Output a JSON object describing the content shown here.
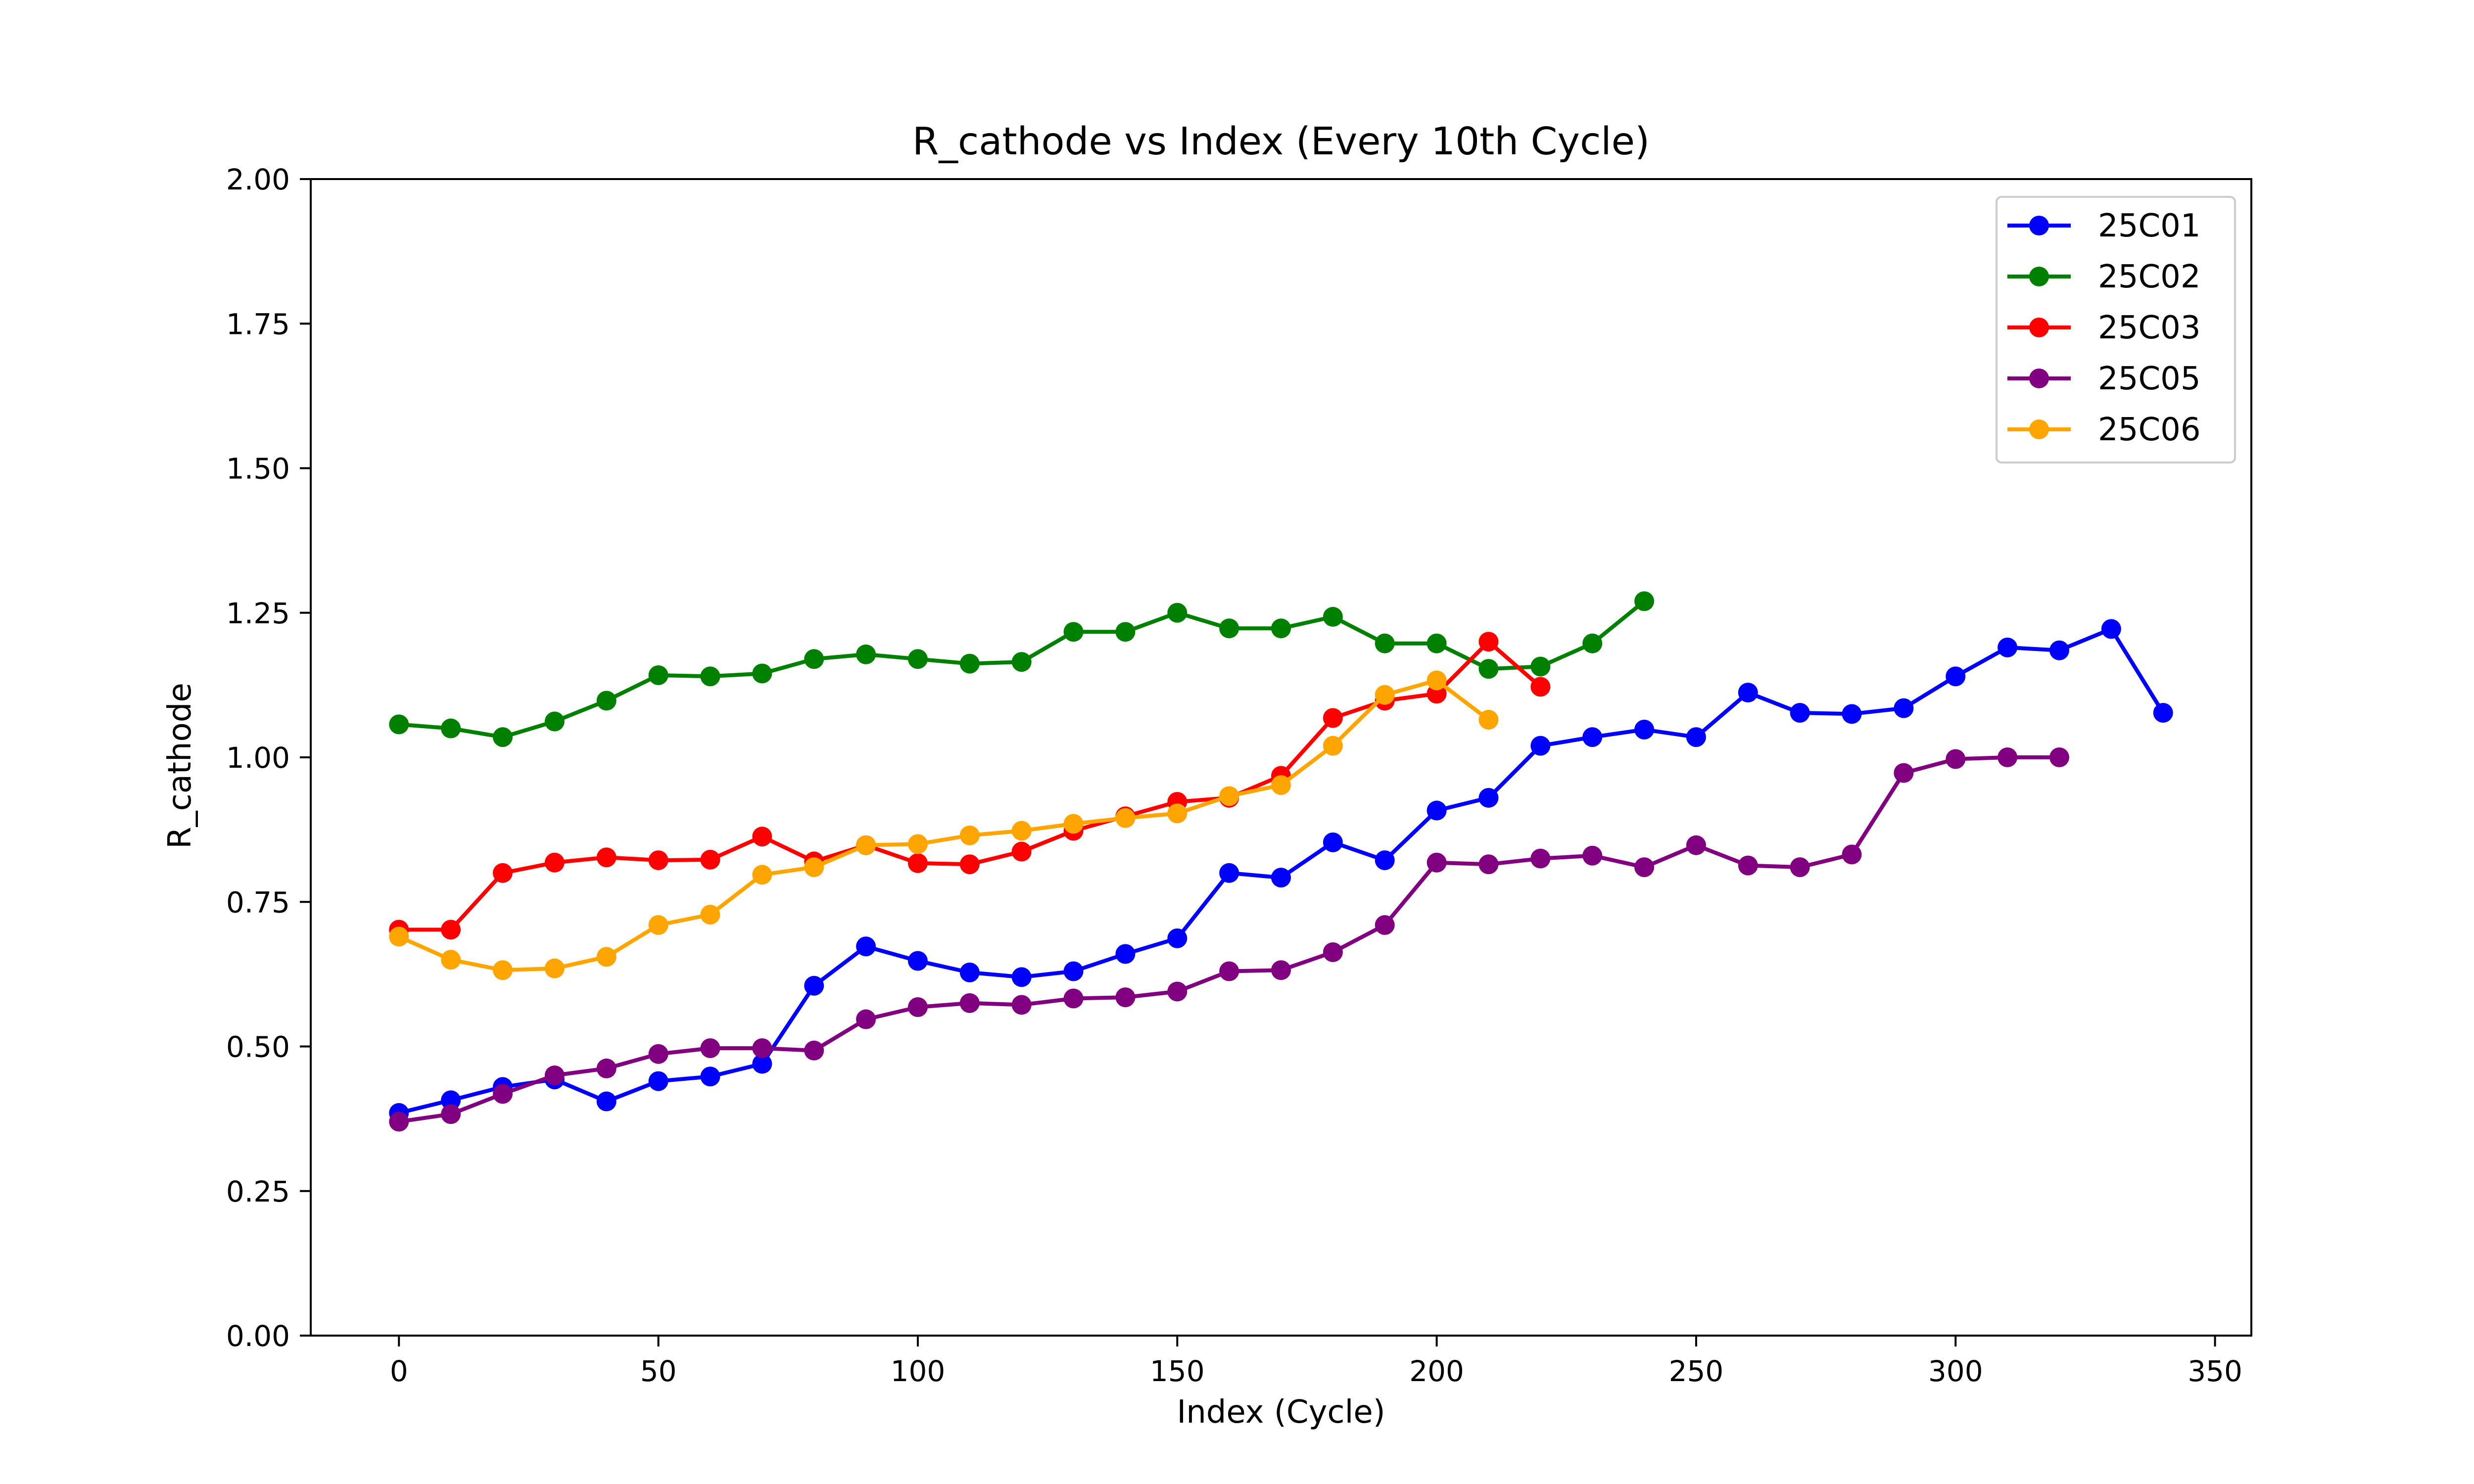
{
  "chart_data": {
    "type": "line",
    "title": "R_cathode vs Index (Every 10th Cycle)",
    "xlabel": "Index (Cycle)",
    "ylabel": "R_cathode",
    "xlim": [
      -17,
      357
    ],
    "ylim": [
      0,
      2.0
    ],
    "xticks": [
      0,
      50,
      100,
      150,
      200,
      250,
      300,
      350
    ],
    "yticks": [
      0.0,
      0.25,
      0.5,
      0.75,
      1.0,
      1.25,
      1.5,
      1.75,
      2.0
    ],
    "ytick_labels": [
      "0.00",
      "0.25",
      "0.50",
      "0.75",
      "1.00",
      "1.25",
      "1.50",
      "1.75",
      "2.00"
    ],
    "grid": false,
    "legend_position": "top-right",
    "series": [
      {
        "name": "25C01",
        "color": "#0000ff",
        "x": [
          0,
          10,
          20,
          30,
          40,
          50,
          60,
          70,
          80,
          90,
          100,
          110,
          120,
          130,
          140,
          150,
          160,
          170,
          180,
          190,
          200,
          210,
          220,
          230,
          240,
          250,
          260,
          270,
          280,
          290,
          300,
          310,
          320,
          330,
          340
        ],
        "y": [
          0.385,
          0.407,
          0.43,
          0.443,
          0.405,
          0.44,
          0.448,
          0.47,
          0.605,
          0.673,
          0.648,
          0.628,
          0.62,
          0.63,
          0.66,
          0.687,
          0.8,
          0.792,
          0.853,
          0.822,
          0.908,
          0.93,
          1.02,
          1.035,
          1.048,
          1.035,
          1.112,
          1.077,
          1.075,
          1.085,
          1.14,
          1.19,
          1.185,
          1.222,
          1.077
        ]
      },
      {
        "name": "25C02",
        "color": "#008000",
        "x": [
          0,
          10,
          20,
          30,
          40,
          50,
          60,
          70,
          80,
          90,
          100,
          110,
          120,
          130,
          140,
          150,
          160,
          170,
          180,
          190,
          200,
          210,
          220,
          230,
          240
        ],
        "y": [
          1.057,
          1.05,
          1.035,
          1.062,
          1.098,
          1.142,
          1.14,
          1.145,
          1.17,
          1.178,
          1.17,
          1.162,
          1.165,
          1.217,
          1.217,
          1.25,
          1.223,
          1.223,
          1.243,
          1.197,
          1.197,
          1.153,
          1.157,
          1.197,
          1.27
        ]
      },
      {
        "name": "25C03",
        "color": "#ff0000",
        "x": [
          0,
          10,
          20,
          30,
          40,
          50,
          60,
          70,
          80,
          90,
          100,
          110,
          120,
          130,
          140,
          150,
          160,
          170,
          180,
          190,
          200,
          210,
          220
        ],
        "y": [
          0.702,
          0.702,
          0.8,
          0.818,
          0.827,
          0.822,
          0.823,
          0.863,
          0.82,
          0.848,
          0.817,
          0.815,
          0.837,
          0.873,
          0.898,
          0.923,
          0.93,
          0.968,
          1.068,
          1.098,
          1.11,
          1.2,
          1.122
        ]
      },
      {
        "name": "25C05",
        "color": "#800080",
        "x": [
          0,
          10,
          20,
          30,
          40,
          50,
          60,
          70,
          80,
          90,
          100,
          110,
          120,
          130,
          140,
          150,
          160,
          170,
          180,
          190,
          200,
          210,
          220,
          230,
          240,
          250,
          260,
          270,
          280,
          290,
          300,
          310,
          320
        ],
        "y": [
          0.37,
          0.383,
          0.418,
          0.45,
          0.462,
          0.487,
          0.497,
          0.497,
          0.493,
          0.547,
          0.568,
          0.575,
          0.572,
          0.583,
          0.585,
          0.595,
          0.63,
          0.632,
          0.663,
          0.71,
          0.818,
          0.815,
          0.825,
          0.83,
          0.81,
          0.848,
          0.813,
          0.81,
          0.832,
          0.973,
          0.997,
          1.0,
          1.0
        ]
      },
      {
        "name": "25C06",
        "color": "#ffa500",
        "x": [
          0,
          10,
          20,
          30,
          40,
          50,
          60,
          70,
          80,
          90,
          100,
          110,
          120,
          130,
          140,
          150,
          160,
          170,
          180,
          190,
          200,
          210
        ],
        "y": [
          0.69,
          0.65,
          0.632,
          0.635,
          0.655,
          0.71,
          0.728,
          0.797,
          0.81,
          0.848,
          0.85,
          0.865,
          0.873,
          0.885,
          0.895,
          0.903,
          0.933,
          0.952,
          1.02,
          1.108,
          1.133,
          1.065
        ]
      }
    ]
  }
}
